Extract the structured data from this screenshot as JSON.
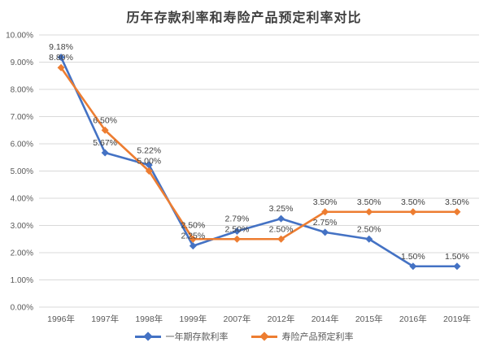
{
  "title": "历年存款利率和寿险产品预定利率对比",
  "chart_data": {
    "type": "line",
    "title": "历年存款利率和寿险产品预定利率对比",
    "categories": [
      "1996年",
      "1997年",
      "1998年",
      "1999年",
      "2007年",
      "2012年",
      "2014年",
      "2015年",
      "2016年",
      "2019年"
    ],
    "series": [
      {
        "id": "deposit-rate",
        "name": "一年期存款利率",
        "color": "#4472C4",
        "values": [
          9.18,
          5.67,
          5.22,
          2.25,
          2.79,
          3.25,
          2.75,
          2.5,
          1.5,
          1.5
        ],
        "labels": [
          "9.18%",
          "5.67%",
          "5.22%",
          "2.25%",
          "2.79%",
          "3.25%",
          "2.75%",
          "2.50%",
          "1.50%",
          "1.50%"
        ]
      },
      {
        "id": "insurance-rate",
        "name": "寿险产品预定利率",
        "color": "#ED7D31",
        "values": [
          8.8,
          6.5,
          5.0,
          2.5,
          2.5,
          2.5,
          3.5,
          3.5,
          3.5,
          3.5
        ],
        "labels": [
          "8.80%",
          "6.50%",
          "5.00%",
          "2.50%",
          "2.50%",
          "2.50%",
          "3.50%",
          "3.50%",
          "3.50%",
          "3.50%"
        ]
      }
    ],
    "ylim": [
      0,
      10
    ],
    "ytick_step": 1,
    "ytick_labels": [
      "0.00%",
      "1.00%",
      "2.00%",
      "3.00%",
      "4.00%",
      "5.00%",
      "6.00%",
      "7.00%",
      "8.00%",
      "9.00%",
      "10.00%"
    ],
    "xlabel": "",
    "ylabel": "",
    "grid": true,
    "legend_position": "bottom",
    "marker": "diamond",
    "grid_color": "#D9D9D9",
    "axis_text_color": "#595959",
    "label_color": "#404040"
  }
}
